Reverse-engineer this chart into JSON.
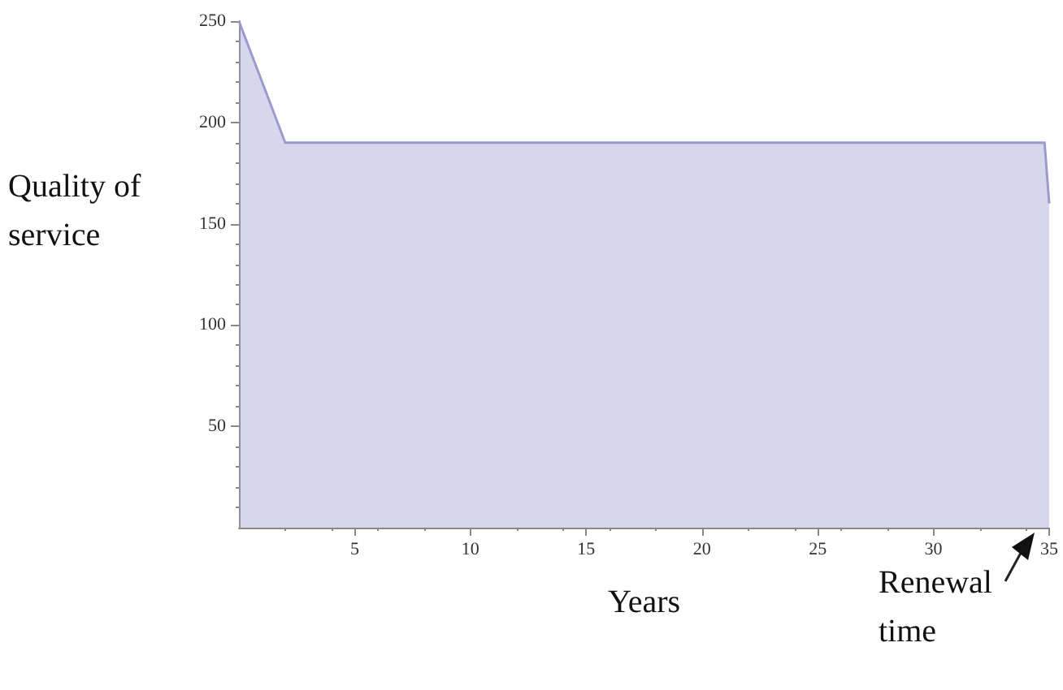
{
  "chart_data": {
    "type": "area",
    "xlabel": "Years",
    "ylabel": "Quality of service",
    "x": [
      0,
      2,
      34.8,
      35
    ],
    "series": [
      {
        "color": "#9a9bcc",
        "values": [
          250,
          190,
          190,
          160
        ]
      }
    ],
    "xlim": [
      0,
      35
    ],
    "xticks": [
      5,
      10,
      15,
      20,
      25,
      30,
      35
    ],
    "ylim": [
      0,
      250
    ],
    "yticks": [
      50,
      100,
      150,
      200,
      250
    ],
    "grid": false,
    "marker": "none",
    "annotations": [
      {
        "text": "Renewal time",
        "x": 35,
        "y": 0
      }
    ]
  }
}
